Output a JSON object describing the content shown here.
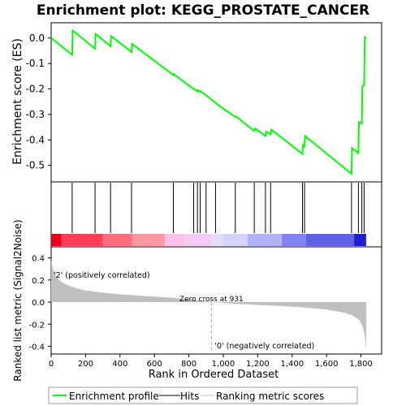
{
  "chart_data": {
    "type": "line",
    "title": "Enrichment plot: KEGG_PROSTATE_CANCER",
    "es_panel": {
      "ylabel": "Enrichment score (ES)",
      "yticks": [
        "0.0",
        "-0.1",
        "-0.2",
        "-0.3",
        "-0.4",
        "-0.5"
      ],
      "ytick_values": [
        0.0,
        -0.1,
        -0.2,
        -0.3,
        -0.4,
        -0.5
      ],
      "ylim": [
        -0.565,
        0.06
      ],
      "line_color": "#00ff00",
      "points": [
        [
          0,
          0.0
        ],
        [
          122,
          -0.066
        ],
        [
          125,
          0.03
        ],
        [
          255,
          -0.042
        ],
        [
          258,
          0.016
        ],
        [
          345,
          -0.032
        ],
        [
          348,
          0.008
        ],
        [
          467,
          -0.055
        ],
        [
          470,
          -0.023
        ],
        [
          710,
          -0.145
        ],
        [
          713,
          -0.142
        ],
        [
          828,
          -0.201
        ],
        [
          832,
          -0.2
        ],
        [
          850,
          -0.21
        ],
        [
          854,
          -0.205
        ],
        [
          866,
          -0.211
        ],
        [
          870,
          -0.209
        ],
        [
          900,
          -0.225
        ],
        [
          955,
          -0.254
        ],
        [
          960,
          -0.258
        ],
        [
          1070,
          -0.31
        ],
        [
          1075,
          -0.308
        ],
        [
          1180,
          -0.365
        ],
        [
          1185,
          -0.355
        ],
        [
          1245,
          -0.385
        ],
        [
          1250,
          -0.368
        ],
        [
          1275,
          -0.378
        ],
        [
          1280,
          -0.36
        ],
        [
          1460,
          -0.455
        ],
        [
          1463,
          -0.42
        ],
        [
          1472,
          -0.425
        ],
        [
          1475,
          -0.385
        ],
        [
          1745,
          -0.533
        ],
        [
          1748,
          -0.432
        ],
        [
          1785,
          -0.452
        ],
        [
          1788,
          -0.33
        ],
        [
          1805,
          -0.335
        ],
        [
          1808,
          -0.19
        ],
        [
          1818,
          -0.185
        ],
        [
          1822,
          0.003
        ],
        [
          1830,
          0.0
        ]
      ]
    },
    "hits": [
      122,
      255,
      345,
      467,
      710,
      828,
      850,
      866,
      900,
      955,
      1070,
      1180,
      1245,
      1275,
      1460,
      1472,
      1745,
      1785,
      1805,
      1818
    ],
    "ranking_panel": {
      "ylabel": "Ranked list metric (Signal2Noise)",
      "yticks": [
        "0.4",
        "0.2",
        "0.0",
        "-0.2",
        "-0.4"
      ],
      "ytick_values": [
        0.4,
        0.2,
        0.0,
        -0.2,
        -0.4
      ],
      "ylim": [
        -0.47,
        0.5
      ],
      "fill_color": "#c0c0c0",
      "profile": [
        [
          0,
          0.38
        ],
        [
          10,
          0.3
        ],
        [
          30,
          0.23
        ],
        [
          60,
          0.18
        ],
        [
          100,
          0.15
        ],
        [
          150,
          0.125
        ],
        [
          200,
          0.105
        ],
        [
          300,
          0.085
        ],
        [
          400,
          0.07
        ],
        [
          500,
          0.06
        ],
        [
          600,
          0.05
        ],
        [
          700,
          0.04
        ],
        [
          800,
          0.025
        ],
        [
          900,
          0.008
        ],
        [
          931,
          0.0
        ],
        [
          1000,
          -0.008
        ],
        [
          1100,
          -0.018
        ],
        [
          1200,
          -0.025
        ],
        [
          1300,
          -0.033
        ],
        [
          1400,
          -0.042
        ],
        [
          1500,
          -0.052
        ],
        [
          1600,
          -0.068
        ],
        [
          1700,
          -0.095
        ],
        [
          1750,
          -0.12
        ],
        [
          1790,
          -0.16
        ],
        [
          1810,
          -0.22
        ],
        [
          1822,
          -0.3
        ],
        [
          1830,
          -0.42
        ]
      ],
      "zero_cross_label": "Zero cross at 931",
      "zero_cross": 931,
      "pos_label": "'2' (positively correlated)",
      "neg_label": "'0' (negatively correlated)",
      "pos_label_color": "#cc0000",
      "neg_label_color": "#0000cc"
    },
    "xlabel": "Rank in Ordered Dataset",
    "xticks": [
      "0",
      "200",
      "400",
      "600",
      "800",
      "1,000",
      "1,200",
      "1,400",
      "1,600",
      "1,800"
    ],
    "xtick_values": [
      0,
      200,
      400,
      600,
      800,
      1000,
      1200,
      1400,
      1600,
      1800
    ],
    "xlim": [
      0,
      1920
    ],
    "n_genes": 1830,
    "heat_segments": [
      {
        "end": 60,
        "color": "#e8001e"
      },
      {
        "end": 300,
        "color": "#ff3f55"
      },
      {
        "end": 470,
        "color": "#ff6d7e"
      },
      {
        "end": 660,
        "color": "#ff97a3"
      },
      {
        "end": 780,
        "color": "#ffc0ea"
      },
      {
        "end": 931,
        "color": "#f4caf6"
      },
      {
        "end": 1000,
        "color": "#e6dcf8"
      },
      {
        "end": 1140,
        "color": "#d5d4fc"
      },
      {
        "end": 1340,
        "color": "#b2b2fb"
      },
      {
        "end": 1480,
        "color": "#8282f5"
      },
      {
        "end": 1760,
        "color": "#6060e8"
      },
      {
        "end": 1830,
        "color": "#2020c8"
      }
    ],
    "legend": {
      "position": "bottom",
      "items": [
        {
          "label": "Enrichment profile",
          "color": "#00ff00"
        },
        {
          "label": "Hits",
          "color": "#000000"
        },
        {
          "label": "Ranking metric scores",
          "color": "#c0c0c0"
        }
      ]
    }
  }
}
